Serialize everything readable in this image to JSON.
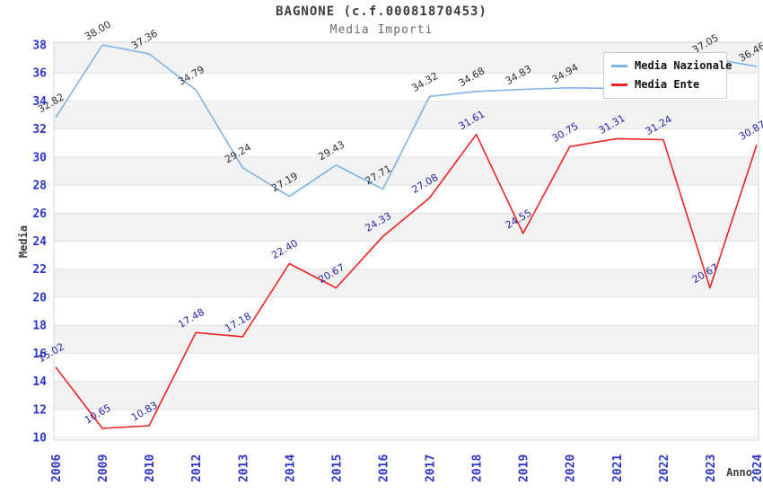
{
  "header": {
    "title": "BAGNONE (c.f.00081870453)",
    "subtitle": "Media Importi"
  },
  "chart_data": {
    "type": "line",
    "title": "BAGNONE (c.f.00081870453)",
    "subtitle": "Media Importi",
    "xlabel": "Anno",
    "ylabel": "Media",
    "categories": [
      "2006",
      "2009",
      "2010",
      "2012",
      "2013",
      "2014",
      "2015",
      "2016",
      "2017",
      "2018",
      "2019",
      "2020",
      "2021",
      "2022",
      "2023",
      "2024"
    ],
    "series": [
      {
        "name": "Media Nazionale",
        "color": "#7fb2e5",
        "label_color": "#303030",
        "values": [
          32.82,
          38.0,
          37.36,
          34.79,
          29.24,
          27.19,
          29.43,
          27.71,
          34.32,
          34.68,
          34.83,
          34.94,
          34.9,
          34.88,
          37.05,
          36.46
        ],
        "labels": [
          "32.82",
          "38.00",
          "37.36",
          "34.79",
          "29.24",
          "27.19",
          "29.43",
          "27.71",
          "34.32",
          "34.68",
          "34.83",
          "34.94",
          "",
          "",
          "37.05",
          "36.46"
        ]
      },
      {
        "name": "Media Ente",
        "color": "#ee2222",
        "label_color": "#2626aa",
        "values": [
          15.02,
          10.65,
          10.83,
          17.48,
          17.18,
          22.4,
          20.67,
          24.33,
          27.08,
          31.61,
          24.55,
          30.75,
          31.31,
          31.24,
          20.67,
          30.87
        ],
        "labels": [
          "15.02",
          "10.65",
          "10.83",
          "17.48",
          "17.18",
          "22.40",
          "20.67",
          "24.33",
          "27.08",
          "31.61",
          "24.55",
          "30.75",
          "31.31",
          "31.24",
          "20.67",
          "30.87"
        ]
      }
    ],
    "ylim": [
      10,
      38.2
    ],
    "yticks": [
      10,
      12,
      14,
      16,
      18,
      20,
      22,
      24,
      26,
      28,
      30,
      32,
      34,
      36,
      38
    ],
    "tick_color": "#2d35c4",
    "grid": {
      "band_color": "#f2f2f2",
      "line_color": "#e2e2e2",
      "border_color": "#d5d5d5",
      "style": "horizontal gridlines with alternating shaded bands"
    },
    "legend_position": "top-right"
  }
}
